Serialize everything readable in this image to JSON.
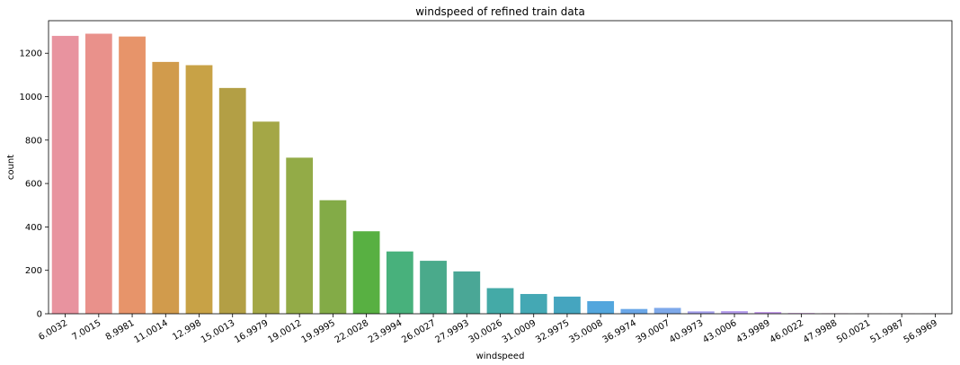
{
  "chart_data": {
    "type": "bar",
    "title": "windspeed of refined train data",
    "xlabel": "windspeed",
    "ylabel": "count",
    "ylim": [
      0,
      1350
    ],
    "yticks": [
      0,
      200,
      400,
      600,
      800,
      1000,
      1200
    ],
    "grid": false,
    "categories": [
      "6.0032",
      "7.0015",
      "8.9981",
      "11.0014",
      "12.998",
      "15.0013",
      "16.9979",
      "19.0012",
      "19.9995",
      "22.0028",
      "23.9994",
      "26.0027",
      "27.9993",
      "30.0026",
      "31.0009",
      "32.9975",
      "35.0008",
      "36.9974",
      "39.0007",
      "40.9973",
      "43.0006",
      "43.9989",
      "46.0022",
      "47.9988",
      "50.0021",
      "51.9987",
      "56.9969"
    ],
    "values": [
      1280,
      1290,
      1277,
      1160,
      1145,
      1040,
      885,
      719,
      523,
      380,
      287,
      244,
      195,
      118,
      91,
      79,
      58,
      22,
      27,
      11,
      12,
      8,
      3,
      2,
      1,
      1,
      1
    ],
    "colors": [
      "#e8939f",
      "#e9918b",
      "#e7946a",
      "#d19b4c",
      "#c8a246",
      "#b39f45",
      "#a4a746",
      "#93ab47",
      "#83ab47",
      "#58b042",
      "#48b17c",
      "#4aaa8b",
      "#4aa796",
      "#44aaa7",
      "#44a8b4",
      "#45a5bf",
      "#53a6dd",
      "#6aa7e8",
      "#7ea9ea",
      "#a5a0ed",
      "#b49cec",
      "#c39ae9",
      "#d48fe6",
      "#e28ad7",
      "#ea8fcb",
      "#ec91bf",
      "#ed93b3"
    ]
  }
}
